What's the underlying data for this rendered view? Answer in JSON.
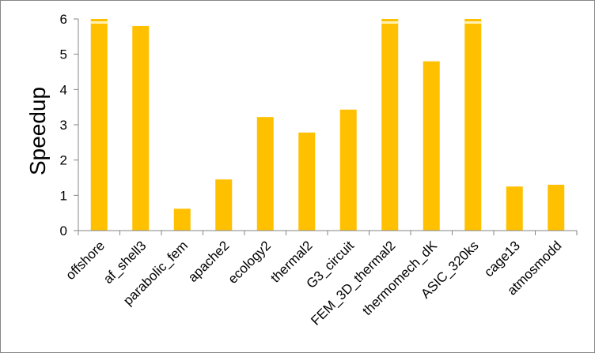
{
  "chart_data": {
    "type": "bar",
    "title": "",
    "xlabel": "",
    "ylabel": "Speedup",
    "ylim": [
      0,
      6
    ],
    "yticks": [
      "0",
      "1",
      "2",
      "3",
      "4",
      "5",
      "6"
    ],
    "grid": false,
    "legend": "none",
    "bar_color": "#FFC000",
    "capped_marker_color": "#FFF2B2",
    "categories": [
      "offshore",
      "af_shell3",
      "parabolic_fem",
      "apache2",
      "ecology2",
      "thermal2",
      "G3_circuit",
      "FEM_3D_thermal2",
      "thermomech_dK",
      "ASIC_320ks",
      "cage13",
      "atmosmodd"
    ],
    "values": [
      6.0,
      5.8,
      0.62,
      1.45,
      3.22,
      2.78,
      3.43,
      6.0,
      4.8,
      6.0,
      1.25,
      1.3
    ],
    "clipped_at_axis_max": [
      true,
      false,
      false,
      false,
      false,
      false,
      false,
      true,
      false,
      true,
      false,
      false
    ]
  }
}
